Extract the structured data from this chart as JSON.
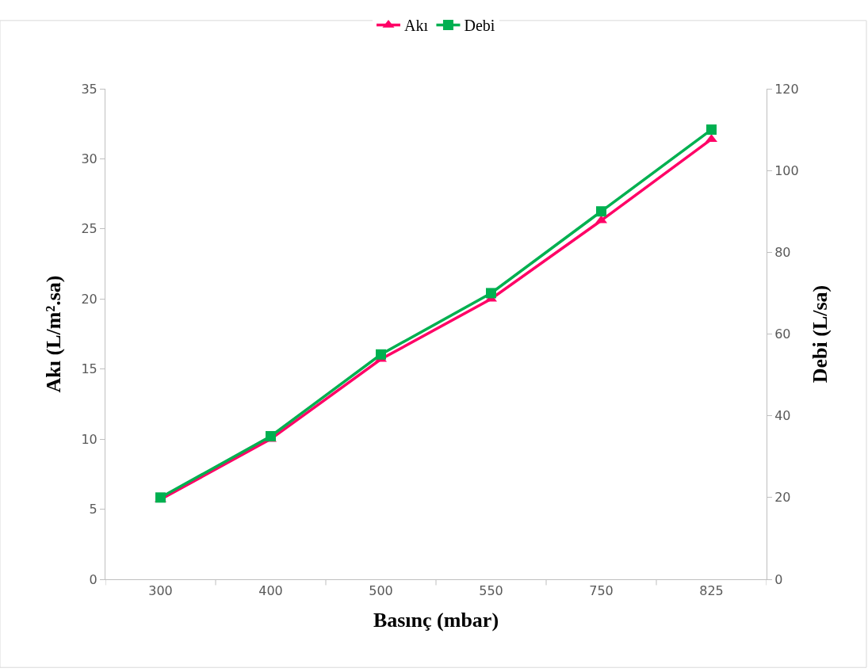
{
  "chart_data": {
    "type": "line",
    "xlabel": "Basınç (mbar)",
    "ylabel": "Akı (L/m².sa)",
    "y2label": "Debi (L/sa)",
    "categories": [
      "300",
      "400",
      "500",
      "550",
      "750",
      "825"
    ],
    "series": [
      {
        "name": "Akı",
        "color": "#ff0066",
        "marker": "triangle",
        "values": [
          5.7,
          10,
          15.7,
          20,
          25.6,
          31.4
        ]
      },
      {
        "name": "Debi",
        "color": "#00b050",
        "marker": "square",
        "axis": "y2",
        "values": [
          20,
          35,
          55,
          70,
          90,
          110
        ]
      }
    ],
    "ylim": [
      0,
      35
    ],
    "yticks": [
      0,
      5,
      10,
      15,
      20,
      25,
      30,
      35
    ],
    "y2lim": [
      0,
      120
    ],
    "y2ticks": [
      0,
      20,
      40,
      60,
      80,
      100,
      120
    ],
    "grid": false,
    "legend": "top"
  }
}
